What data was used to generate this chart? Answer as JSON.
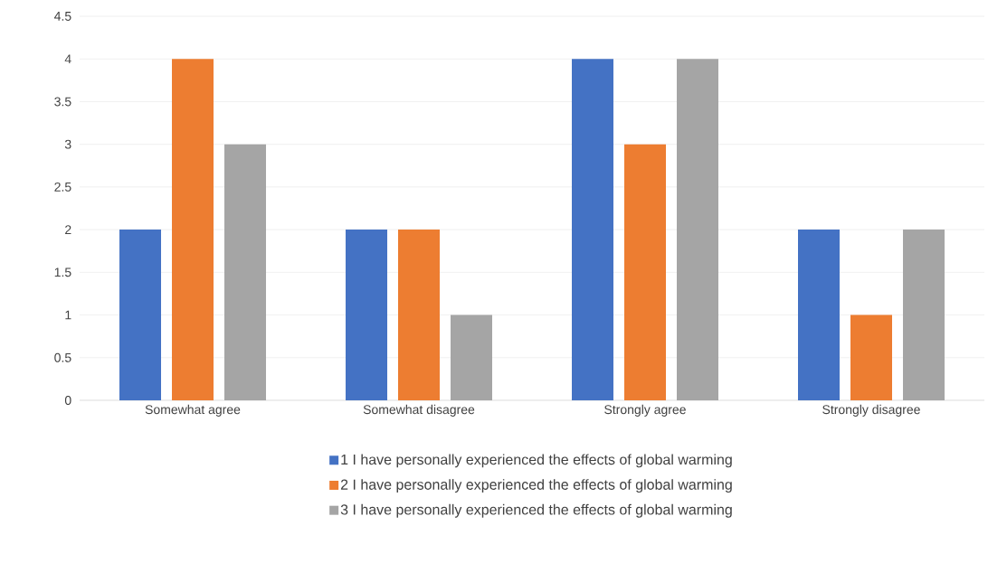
{
  "chart_data": {
    "type": "bar",
    "categories": [
      "Somewhat agree",
      "Somewhat disagree",
      "Strongly agree",
      "Strongly disagree"
    ],
    "series": [
      {
        "name": "1 I have personally experienced the effects of global warming",
        "color": "#4472c4",
        "values": [
          2,
          2,
          4,
          2
        ]
      },
      {
        "name": "2 I have personally experienced the effects of global warming",
        "color": "#ed7d31",
        "values": [
          4,
          2,
          3,
          1
        ]
      },
      {
        "name": "3 I have personally experienced the effects of global warming",
        "color": "#a5a5a5",
        "values": [
          3,
          1,
          4,
          2
        ]
      }
    ],
    "ylim": [
      0,
      4.5
    ],
    "yticks": [
      0,
      0.5,
      1,
      1.5,
      2,
      2.5,
      3,
      3.5,
      4,
      4.5
    ],
    "grid": "y",
    "legend": "bottom"
  }
}
